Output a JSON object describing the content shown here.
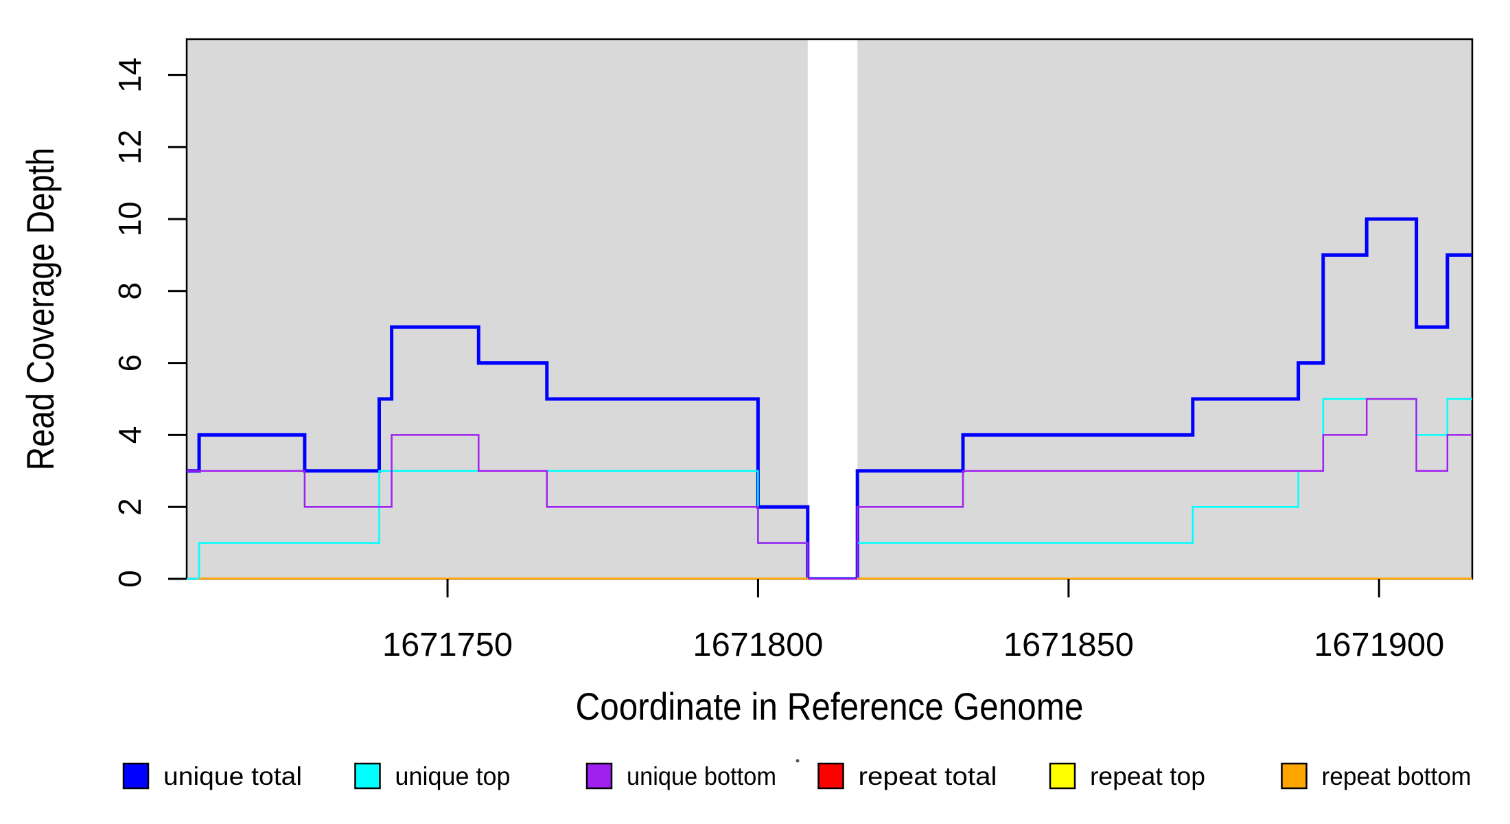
{
  "chart_data": {
    "type": "line",
    "subtype": "step-coverage",
    "title": "",
    "xlabel": "Coordinate in Reference Genome",
    "ylabel": "Read Coverage Depth",
    "x_domain": [
      1671708,
      1671915
    ],
    "y_domain": [
      0,
      15
    ],
    "x_ticks": [
      1671750,
      1671800,
      1671850,
      1671900
    ],
    "y_ticks": [
      0,
      2,
      4,
      6,
      8,
      10,
      12,
      14
    ],
    "grid": false,
    "plot_bg_color": "#d9d9d9",
    "axis_color": "#000000",
    "gap_region": {
      "x_start": 1671808,
      "x_end": 1671816,
      "color": "#ffffff"
    },
    "series": [
      {
        "name": "unique total",
        "key": "unique-total",
        "color": "#0000ff",
        "line_width": 5,
        "segments": [
          {
            "x": [
              1671708,
              1671710,
              1671727,
              1671739,
              1671741,
              1671755,
              1671766,
              1671800,
              1671808,
              1671816,
              1671833,
              1671870,
              1671887,
              1671891,
              1671898,
              1671906,
              1671911,
              1671915
            ],
            "v": [
              3,
              4,
              3,
              5,
              7,
              6,
              5,
              2,
              0,
              3,
              4,
              5,
              6,
              9,
              10,
              7,
              9,
              9
            ]
          }
        ]
      },
      {
        "name": "unique top",
        "key": "unique-top",
        "color": "#00ffff",
        "line_width": 2.5,
        "segments": [
          {
            "x": [
              1671708,
              1671710,
              1671739,
              1671800,
              1671808,
              1671816,
              1671870,
              1671887,
              1671891,
              1671906,
              1671911,
              1671915
            ],
            "v": [
              0,
              1,
              3,
              1,
              0,
              1,
              2,
              3,
              5,
              4,
              5,
              5
            ]
          }
        ]
      },
      {
        "name": "unique bottom",
        "key": "unique-bottom",
        "color": "#a020f0",
        "line_width": 2.5,
        "segments": [
          {
            "x": [
              1671708,
              1671727,
              1671741,
              1671755,
              1671766,
              1671800,
              1671808,
              1671816,
              1671833,
              1671891,
              1671898,
              1671906,
              1671911,
              1671915
            ],
            "v": [
              3,
              2,
              4,
              3,
              2,
              1,
              0,
              2,
              3,
              4,
              5,
              3,
              4,
              4
            ]
          }
        ]
      },
      {
        "name": "repeat total",
        "key": "repeat-total",
        "color": "#ff0000",
        "line_width": 2.5,
        "segments": [
          {
            "x": [
              1671710,
              1671808
            ],
            "v": [
              0,
              0
            ]
          },
          {
            "x": [
              1671816,
              1671915
            ],
            "v": [
              0,
              0
            ]
          }
        ]
      },
      {
        "name": "repeat top",
        "key": "repeat-top",
        "color": "#ffff00",
        "line_width": 2.5,
        "segments": [
          {
            "x": [
              1671710,
              1671808
            ],
            "v": [
              0,
              0
            ]
          },
          {
            "x": [
              1671816,
              1671915
            ],
            "v": [
              0,
              0
            ]
          }
        ]
      },
      {
        "name": "repeat bottom",
        "key": "repeat-bottom",
        "color": "#ffa500",
        "line_width": 3.5,
        "segments": [
          {
            "x": [
              1671710,
              1671808
            ],
            "v": [
              0,
              0
            ]
          },
          {
            "x": [
              1671816,
              1671915
            ],
            "v": [
              0,
              0
            ]
          }
        ]
      }
    ],
    "legend": {
      "position": "bottom",
      "entries": [
        {
          "label": "unique total",
          "color": "#0000ff"
        },
        {
          "label": "unique top",
          "color": "#00ffff"
        },
        {
          "label": "unique bottom",
          "color": "#a020f0"
        },
        {
          "label": "repeat total",
          "color": "#ff0000"
        },
        {
          "label": "repeat top",
          "color": "#ffff00"
        },
        {
          "label": "repeat bottom",
          "color": "#ffa500"
        }
      ]
    }
  }
}
